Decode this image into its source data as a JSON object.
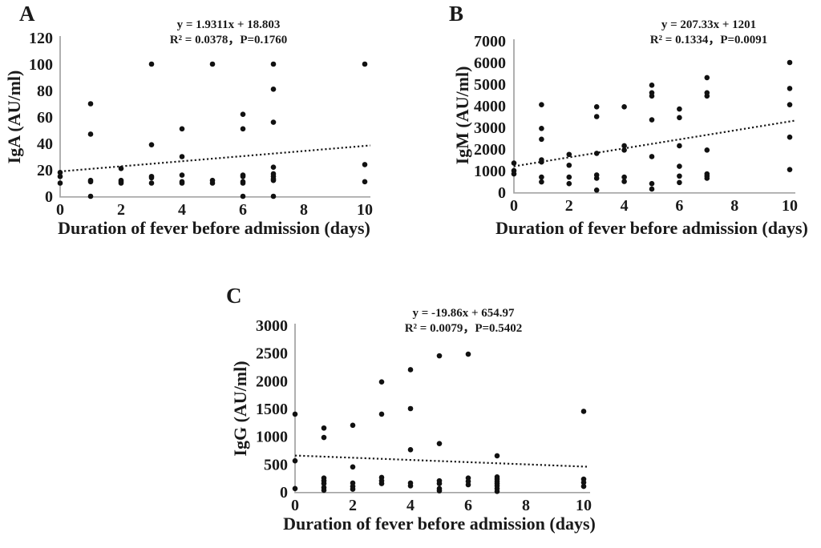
{
  "figure": {
    "colors": {
      "background": "#ffffff",
      "point": "#111111",
      "axis": "#a3a3a3",
      "trend": "#1a1a1a",
      "text": "#1a1a1a"
    }
  },
  "chart_data": [
    {
      "id": "panel-a",
      "type": "scatter",
      "panel_label": "A",
      "ylabel": "IgA (AU/ml)",
      "xlabel": "Duration of fever before admission (days)",
      "annotation": {
        "line1": "y = 1.9311x + 18.803",
        "line2": "R² = 0.0378，P=0.1760"
      },
      "trend": {
        "slope": 1.9311,
        "intercept": 18.803,
        "style": "dotted"
      },
      "xlim": [
        0,
        10
      ],
      "ylim": [
        0,
        120
      ],
      "x_ticks": [
        0,
        2,
        4,
        6,
        8,
        10
      ],
      "y_ticks": [
        0,
        20,
        40,
        60,
        80,
        100,
        120
      ],
      "grid": false,
      "legend": "none",
      "points": [
        [
          0,
          18
        ],
        [
          0,
          15
        ],
        [
          0,
          10
        ],
        [
          1,
          70
        ],
        [
          1,
          47
        ],
        [
          1,
          12
        ],
        [
          1,
          11
        ],
        [
          1,
          0
        ],
        [
          2,
          21
        ],
        [
          2,
          12
        ],
        [
          2,
          11
        ],
        [
          2,
          10
        ],
        [
          3,
          100
        ],
        [
          3,
          39
        ],
        [
          3,
          15
        ],
        [
          3,
          14
        ],
        [
          3,
          10
        ],
        [
          4,
          51
        ],
        [
          4,
          30
        ],
        [
          4,
          16
        ],
        [
          4,
          11
        ],
        [
          4,
          10
        ],
        [
          5,
          100
        ],
        [
          5,
          12
        ],
        [
          5,
          10
        ],
        [
          6,
          62
        ],
        [
          6,
          51
        ],
        [
          6,
          16
        ],
        [
          6,
          15
        ],
        [
          6,
          11
        ],
        [
          6,
          10
        ],
        [
          6,
          0
        ],
        [
          7,
          100
        ],
        [
          7,
          81
        ],
        [
          7,
          56
        ],
        [
          7,
          22
        ],
        [
          7,
          17
        ],
        [
          7,
          15
        ],
        [
          7,
          13
        ],
        [
          7,
          12
        ],
        [
          7,
          0
        ],
        [
          10,
          100
        ],
        [
          10,
          24
        ],
        [
          10,
          11
        ]
      ]
    },
    {
      "id": "panel-b",
      "type": "scatter",
      "panel_label": "B",
      "ylabel": "IgM (AU/ml)",
      "xlabel": "Duration of fever before admission (days)",
      "annotation": {
        "line1": "y = 207.33x + 1201",
        "line2": "R² = 0.1334，P=0.0091"
      },
      "trend": {
        "slope": 207.33,
        "intercept": 1201,
        "style": "dotted"
      },
      "xlim": [
        0,
        10
      ],
      "ylim": [
        0,
        7000
      ],
      "x_ticks": [
        0,
        2,
        4,
        6,
        8,
        10
      ],
      "y_ticks": [
        0,
        1000,
        2000,
        3000,
        4000,
        5000,
        6000,
        7000
      ],
      "grid": false,
      "legend": "none",
      "points": [
        [
          0,
          1350
        ],
        [
          0,
          1000
        ],
        [
          0,
          850
        ],
        [
          1,
          4050
        ],
        [
          1,
          2950
        ],
        [
          1,
          2450
        ],
        [
          1,
          1500
        ],
        [
          1,
          1400
        ],
        [
          1,
          700
        ],
        [
          1,
          480
        ],
        [
          2,
          1750
        ],
        [
          2,
          1250
        ],
        [
          2,
          700
        ],
        [
          2,
          400
        ],
        [
          3,
          3950
        ],
        [
          3,
          3500
        ],
        [
          3,
          1800
        ],
        [
          3,
          800
        ],
        [
          3,
          650
        ],
        [
          3,
          100
        ],
        [
          4,
          3950
        ],
        [
          4,
          2150
        ],
        [
          4,
          1950
        ],
        [
          4,
          700
        ],
        [
          4,
          500
        ],
        [
          5,
          4950
        ],
        [
          5,
          4600
        ],
        [
          5,
          4450
        ],
        [
          5,
          3350
        ],
        [
          5,
          1650
        ],
        [
          5,
          400
        ],
        [
          5,
          150
        ],
        [
          6,
          3850
        ],
        [
          6,
          3450
        ],
        [
          6,
          2150
        ],
        [
          6,
          1200
        ],
        [
          6,
          750
        ],
        [
          6,
          450
        ],
        [
          7,
          5300
        ],
        [
          7,
          4600
        ],
        [
          7,
          4450
        ],
        [
          7,
          1950
        ],
        [
          7,
          850
        ],
        [
          7,
          750
        ],
        [
          7,
          650
        ],
        [
          10,
          6000
        ],
        [
          10,
          4800
        ],
        [
          10,
          4050
        ],
        [
          10,
          2550
        ],
        [
          10,
          1050
        ]
      ]
    },
    {
      "id": "panel-c",
      "type": "scatter",
      "panel_label": "C",
      "ylabel": "IgG (AU/ml)",
      "xlabel": "Duration of fever before admission (days)",
      "annotation": {
        "line1": "y = -19.86x + 654.97",
        "line2": "R² = 0.0079，P=0.5402"
      },
      "trend": {
        "slope": -19.86,
        "intercept": 654.97,
        "style": "dotted"
      },
      "xlim": [
        0,
        10
      ],
      "ylim": [
        0,
        3000
      ],
      "x_ticks": [
        0,
        2,
        4,
        6,
        8,
        10
      ],
      "y_ticks": [
        0,
        500,
        1000,
        1500,
        2000,
        2500,
        3000
      ],
      "grid": false,
      "legend": "none",
      "points": [
        [
          0,
          1400
        ],
        [
          0,
          560
        ],
        [
          0,
          60
        ],
        [
          1,
          1150
        ],
        [
          1,
          980
        ],
        [
          1,
          250
        ],
        [
          1,
          200
        ],
        [
          1,
          150
        ],
        [
          1,
          80
        ],
        [
          1,
          30
        ],
        [
          2,
          1200
        ],
        [
          2,
          450
        ],
        [
          2,
          160
        ],
        [
          2,
          100
        ],
        [
          2,
          50
        ],
        [
          3,
          1980
        ],
        [
          3,
          1400
        ],
        [
          3,
          260
        ],
        [
          3,
          200
        ],
        [
          3,
          150
        ],
        [
          4,
          2200
        ],
        [
          4,
          1500
        ],
        [
          4,
          760
        ],
        [
          4,
          160
        ],
        [
          4,
          110
        ],
        [
          5,
          2450
        ],
        [
          5,
          870
        ],
        [
          5,
          200
        ],
        [
          5,
          150
        ],
        [
          5,
          60
        ],
        [
          5,
          20
        ],
        [
          6,
          2480
        ],
        [
          6,
          250
        ],
        [
          6,
          190
        ],
        [
          6,
          130
        ],
        [
          7,
          650
        ],
        [
          7,
          270
        ],
        [
          7,
          230
        ],
        [
          7,
          190
        ],
        [
          7,
          150
        ],
        [
          7,
          110
        ],
        [
          7,
          60
        ],
        [
          7,
          10
        ],
        [
          10,
          1450
        ],
        [
          10,
          230
        ],
        [
          10,
          170
        ],
        [
          10,
          100
        ]
      ]
    }
  ]
}
